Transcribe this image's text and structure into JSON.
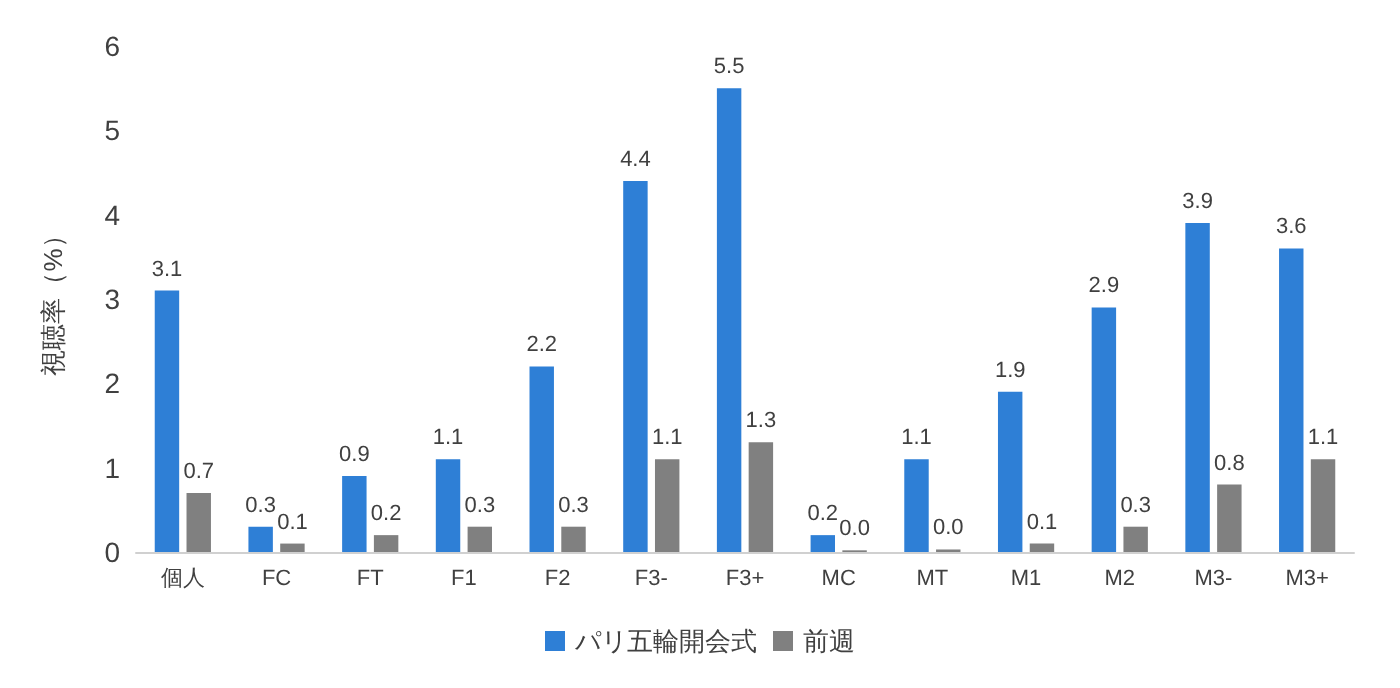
{
  "chart_data": {
    "type": "bar",
    "ylabel": "視聴率（%）",
    "categories": [
      "個人",
      "FC",
      "FT",
      "F1",
      "F2",
      "F3-",
      "F3+",
      "MC",
      "MT",
      "M1",
      "M2",
      "M3-",
      "M3+"
    ],
    "series": [
      {
        "name": "パリ五輪開会式",
        "color": "#2e7fd6",
        "values": [
          3.1,
          0.3,
          0.9,
          1.1,
          2.2,
          4.4,
          5.5,
          0.2,
          1.1,
          1.9,
          2.9,
          3.9,
          3.6
        ],
        "value_labels": [
          "3.1",
          "0.3",
          "0.9",
          "1.1",
          "2.2",
          "4.4",
          "5.5",
          "0.2",
          "1.1",
          "1.9",
          "2.9",
          "3.9",
          "3.6"
        ]
      },
      {
        "name": "前週",
        "color": "#808080",
        "values": [
          0.7,
          0.1,
          0.2,
          0.3,
          0.3,
          1.1,
          1.3,
          0.02,
          0.03,
          0.1,
          0.3,
          0.8,
          1.1
        ],
        "value_labels": [
          "0.7",
          "0.1",
          "0.2",
          "0.3",
          "0.3",
          "1.1",
          "1.3",
          "0.0",
          "0.0",
          "0.1",
          "0.3",
          "0.8",
          "1.1"
        ]
      }
    ],
    "ylim": [
      0,
      6
    ],
    "yticks": [
      0,
      1,
      2,
      3,
      4,
      5,
      6
    ],
    "grid": false,
    "legend": "bottom"
  }
}
